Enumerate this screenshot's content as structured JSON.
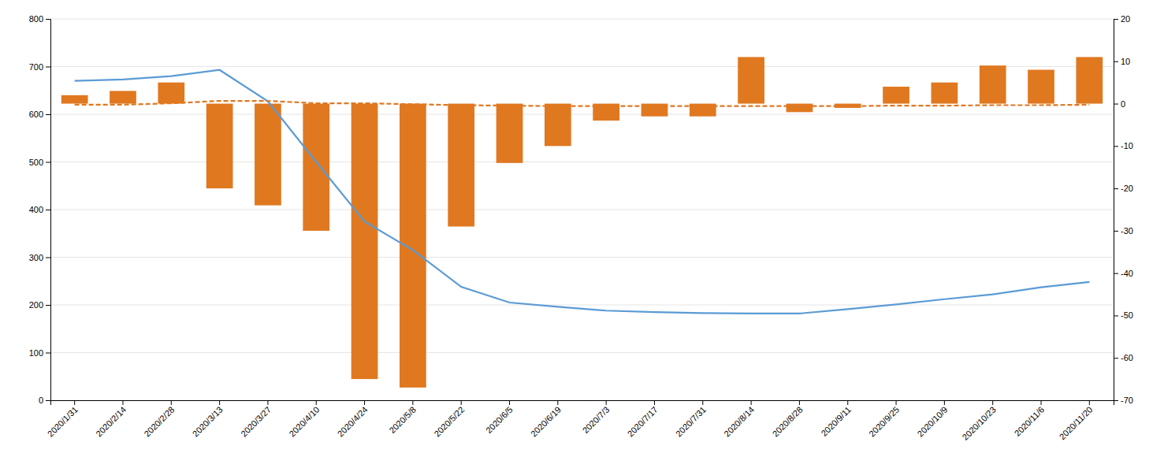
{
  "chart_data": {
    "type": "bar",
    "categories": [
      "2020/1/31",
      "2020/2/14",
      "2020/2/28",
      "2020/3/13",
      "2020/3/27",
      "2020/4/10",
      "2020/4/24",
      "2020/5/8",
      "2020/5/22",
      "2020/6/5",
      "2020/6/19",
      "2020/7/3",
      "2020/7/17",
      "2020/7/31",
      "2020/8/14",
      "2020/8/28",
      "2020/9/11",
      "2020/9/25",
      "2020/10/9",
      "2020/10/23",
      "2020/11/6",
      "2020/11/20"
    ],
    "series": [
      {
        "type": "bar",
        "axis": "y2",
        "color": "#e07820",
        "values": [
          2,
          3,
          5,
          -20,
          -24,
          -30,
          -65,
          -67,
          -29,
          -14,
          -10,
          -4,
          -3,
          -3,
          11,
          -2,
          -1,
          4,
          5,
          9,
          8,
          11
        ]
      },
      {
        "type": "line",
        "color": "#5b9bd5",
        "line_style": "solid",
        "values": [
          670,
          673,
          680,
          693,
          627,
          500,
          375,
          315,
          238,
          205,
          196,
          188,
          185,
          183,
          182,
          182,
          191,
          201,
          212,
          222,
          237,
          248
        ]
      },
      {
        "type": "line",
        "color": "#e07820",
        "line_style": "dashed",
        "values": [
          620,
          620,
          623,
          628,
          628,
          623,
          623,
          621,
          619,
          618,
          617,
          617,
          617,
          617,
          617,
          617,
          617,
          618,
          618,
          619,
          619,
          620
        ]
      }
    ],
    "ylim": [
      0,
      800
    ],
    "yticks": [
      0,
      100,
      200,
      300,
      400,
      500,
      600,
      700,
      800
    ],
    "y2lim": [
      -70,
      20
    ],
    "y2ticks": [
      -70,
      -60,
      -50,
      -40,
      -30,
      -20,
      -10,
      0,
      10,
      20
    ],
    "grid": true
  }
}
